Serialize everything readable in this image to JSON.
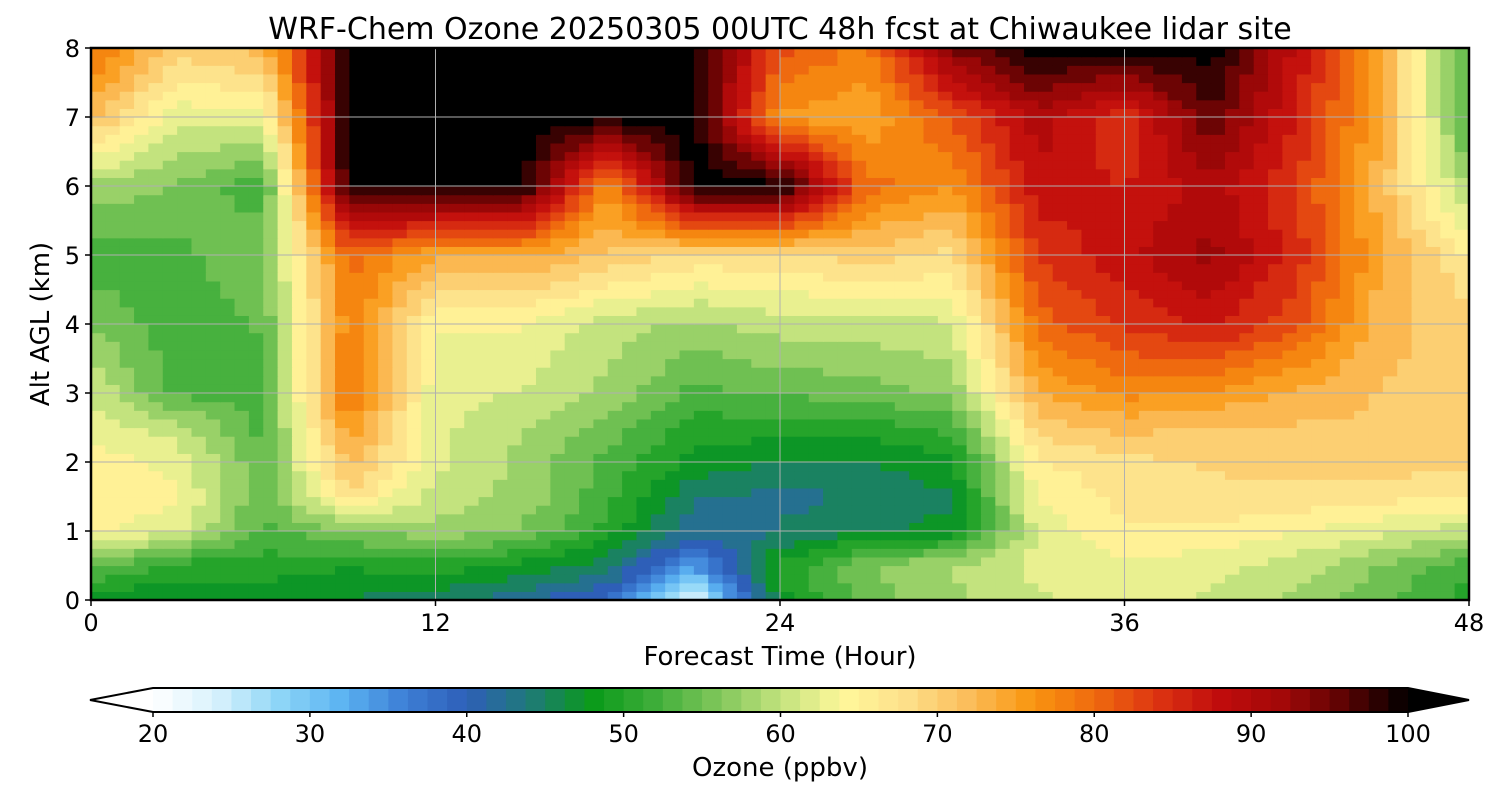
{
  "chart_data": {
    "type": "heatmap",
    "title": "WRF-Chem Ozone  20250305 00UTC 48h fcst at Chiwaukee lidar site",
    "xlabel": "Forecast Time (Hour)",
    "ylabel": "Alt AGL (km)",
    "xlim": [
      0,
      48
    ],
    "ylim": [
      0,
      8
    ],
    "x_ticks": [
      0,
      12,
      24,
      36,
      48
    ],
    "y_ticks": [
      0,
      1,
      2,
      3,
      4,
      5,
      6,
      7,
      8
    ],
    "grid": true,
    "x": [
      0,
      3,
      6,
      9,
      12,
      15,
      18,
      21,
      24,
      27,
      30,
      33,
      36,
      39,
      42,
      45,
      48
    ],
    "y": [
      0,
      0.5,
      1,
      1.5,
      2,
      2.5,
      3,
      4,
      5,
      6,
      7,
      8
    ],
    "values": [
      [
        46,
        47,
        47,
        46,
        45,
        42,
        38,
        22,
        48,
        55,
        58,
        61,
        62,
        61,
        58,
        54,
        50
      ],
      [
        55,
        50,
        50,
        49,
        50,
        48,
        45,
        34,
        49,
        56,
        59,
        62,
        63,
        62,
        60,
        56,
        52
      ],
      [
        64,
        62,
        53,
        56,
        58,
        56,
        50,
        42,
        44,
        46,
        47,
        62,
        66,
        66,
        64,
        62,
        60
      ],
      [
        66,
        64,
        54,
        68,
        60,
        58,
        52,
        44,
        43,
        44,
        46,
        64,
        67,
        68,
        68,
        67,
        66
      ],
      [
        65,
        63,
        54,
        72,
        62,
        58,
        53,
        48,
        46,
        46,
        48,
        66,
        68,
        69,
        70,
        70,
        70
      ],
      [
        63,
        60,
        53,
        76,
        62,
        59,
        55,
        50,
        50,
        50,
        52,
        70,
        72,
        71,
        71,
        71,
        71
      ],
      [
        61,
        53,
        53,
        80,
        62,
        61,
        58,
        53,
        54,
        55,
        57,
        74,
        77,
        76,
        73,
        71,
        71
      ],
      [
        56,
        52,
        54,
        78,
        64,
        64,
        60,
        58,
        60,
        60,
        61,
        80,
        84,
        87,
        82,
        72,
        70
      ],
      [
        52,
        53,
        56,
        80,
        74,
        74,
        71,
        68,
        68,
        70,
        68,
        84,
        88,
        92,
        85,
        74,
        66
      ],
      [
        58,
        56,
        52,
        100,
        100,
        100,
        76,
        100,
        100,
        80,
        76,
        88,
        86,
        90,
        84,
        72,
        58
      ],
      [
        72,
        62,
        63,
        100,
        100,
        100,
        100,
        100,
        76,
        74,
        82,
        90,
        84,
        96,
        86,
        74,
        52
      ],
      [
        80,
        70,
        72,
        100,
        100,
        100,
        100,
        100,
        82,
        78,
        94,
        100,
        100,
        100,
        88,
        74,
        52
      ]
    ],
    "colorbar": {
      "label": "Ozone  (ppbv)",
      "min": 20,
      "max": 100,
      "ticks": [
        20,
        30,
        40,
        50,
        60,
        70,
        80,
        90,
        100
      ],
      "extend": "both",
      "colors": [
        "#ffffff",
        "#d9f2fc",
        "#8fd6f7",
        "#5cb4f2",
        "#3d7fd6",
        "#2e5fb8",
        "#1f7a78",
        "#0a9a1a",
        "#3fae3a",
        "#7fc65a",
        "#c3e37e",
        "#fff79a",
        "#fde08a",
        "#fbbd5a",
        "#f99610",
        "#ef6a0f",
        "#dd3412",
        "#c00c0c",
        "#a20808",
        "#5a0303",
        "#000000"
      ]
    }
  }
}
